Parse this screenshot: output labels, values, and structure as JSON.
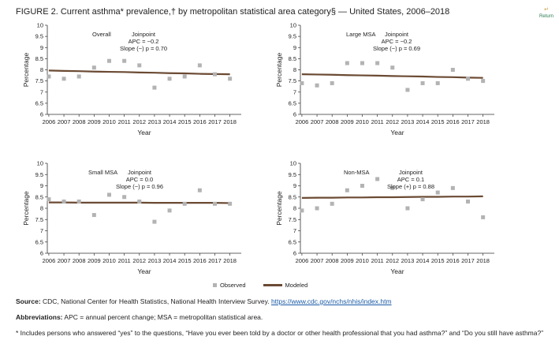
{
  "figure": {
    "title": "FIGURE 2. Current asthma* prevalence,† by metropolitan statistical area category§ — United States, 2006–2018",
    "return_label": "Return"
  },
  "legend": {
    "observed": "Observed",
    "modeled": "Modeled"
  },
  "notes": {
    "source_label": "Source:",
    "source_text": "CDC, National Center for Health Statistics, National Health Interview Survey.",
    "source_link": "https://www.cdc.gov/nchs/nhis/index.htm",
    "abbreviations_label": "Abbreviations:",
    "abbreviations_text": "APC = annual percent change; MSA = metropolitan statistical area.",
    "footnote": "* Includes persons who answered “yes” to the questions, “Have you ever been told by a doctor or other health professional that you had asthma?” and “Do you still have asthma?”"
  },
  "colors": {
    "observed": "#b3b3b3",
    "modeled": "#6b4a33"
  },
  "chart_data": [
    {
      "type": "scatter",
      "panel": "Overall",
      "annotation": [
        "Joinpoint",
        "APC = −0.2",
        "Slope (−) p = 0.70"
      ],
      "xlabel": "Year",
      "ylabel": "Percentage",
      "ylim": [
        6,
        10
      ],
      "yticks": [
        6,
        6.5,
        7,
        7.5,
        8,
        8.5,
        9,
        9.5,
        10
      ],
      "x": [
        2006,
        2007,
        2008,
        2009,
        2010,
        2011,
        2012,
        2013,
        2014,
        2015,
        2016,
        2017,
        2018
      ],
      "series": [
        {
          "name": "Observed",
          "values": [
            7.7,
            7.6,
            7.7,
            8.1,
            8.4,
            8.4,
            8.2,
            7.2,
            7.6,
            7.7,
            8.2,
            7.8,
            7.6
          ]
        },
        {
          "name": "Modeled",
          "values": [
            7.97,
            7.95,
            7.94,
            7.92,
            7.91,
            7.9,
            7.88,
            7.87,
            7.85,
            7.84,
            7.82,
            7.81,
            7.8
          ]
        }
      ]
    },
    {
      "type": "scatter",
      "panel": "Large MSA",
      "annotation": [
        "Joinpoint",
        "APC = −0.2",
        "Slope (−) p = 0.69"
      ],
      "xlabel": "Year",
      "ylabel": "Percentage",
      "ylim": [
        6,
        10
      ],
      "yticks": [
        6,
        6.5,
        7,
        7.5,
        8,
        8.5,
        9,
        9.5,
        10
      ],
      "x": [
        2006,
        2007,
        2008,
        2009,
        2010,
        2011,
        2012,
        2013,
        2014,
        2015,
        2016,
        2017,
        2018
      ],
      "series": [
        {
          "name": "Observed",
          "values": [
            7.4,
            7.3,
            7.4,
            8.3,
            8.3,
            8.3,
            8.1,
            7.1,
            7.4,
            7.4,
            8.0,
            7.6,
            7.5
          ]
        },
        {
          "name": "Modeled",
          "values": [
            7.8,
            7.79,
            7.78,
            7.76,
            7.75,
            7.74,
            7.72,
            7.71,
            7.7,
            7.68,
            7.67,
            7.65,
            7.64
          ]
        }
      ]
    },
    {
      "type": "scatter",
      "panel": "Small MSA",
      "annotation": [
        "Joinpoint",
        "APC = 0.0",
        "Slope (−) p = 0.96"
      ],
      "xlabel": "Year",
      "ylabel": "Percentage",
      "ylim": [
        6,
        10
      ],
      "yticks": [
        6,
        6.5,
        7,
        7.5,
        8,
        8.5,
        9,
        9.5,
        10
      ],
      "x": [
        2006,
        2007,
        2008,
        2009,
        2010,
        2011,
        2012,
        2013,
        2014,
        2015,
        2016,
        2017,
        2018
      ],
      "series": [
        {
          "name": "Observed",
          "values": [
            8.4,
            8.3,
            8.3,
            7.7,
            8.6,
            8.5,
            8.3,
            7.4,
            7.9,
            8.2,
            8.8,
            8.2,
            8.2
          ]
        },
        {
          "name": "Modeled",
          "values": [
            8.26,
            8.26,
            8.25,
            8.25,
            8.25,
            8.25,
            8.25,
            8.24,
            8.24,
            8.24,
            8.24,
            8.24,
            8.23
          ]
        }
      ]
    },
    {
      "type": "scatter",
      "panel": "Non-MSA",
      "annotation": [
        "Joinpoint",
        "APC = 0.1",
        "Slope (+) p = 0.88"
      ],
      "xlabel": "Year",
      "ylabel": "Percentage",
      "ylim": [
        6,
        10
      ],
      "yticks": [
        6,
        6.5,
        7,
        7.5,
        8,
        8.5,
        9,
        9.5,
        10
      ],
      "x": [
        2006,
        2007,
        2008,
        2009,
        2010,
        2011,
        2012,
        2013,
        2014,
        2015,
        2016,
        2017,
        2018
      ],
      "series": [
        {
          "name": "Observed",
          "values": [
            7.9,
            8.0,
            8.2,
            8.8,
            9.0,
            9.3,
            8.9,
            8.0,
            8.4,
            8.7,
            8.9,
            8.3,
            7.6
          ]
        },
        {
          "name": "Modeled",
          "values": [
            8.46,
            8.47,
            8.47,
            8.48,
            8.48,
            8.49,
            8.49,
            8.5,
            8.51,
            8.51,
            8.52,
            8.52,
            8.53
          ]
        }
      ]
    }
  ]
}
